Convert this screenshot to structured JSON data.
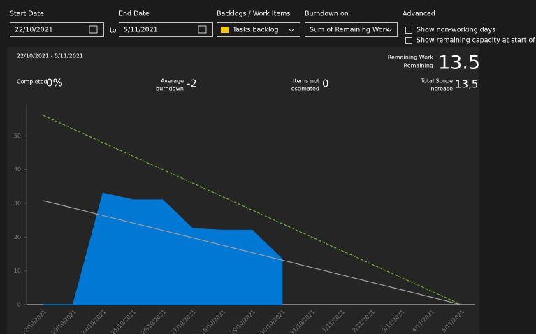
{
  "controls": {
    "start_label": "Start Date",
    "start_value": "22/10/2021",
    "to": "to",
    "end_label": "End Date",
    "end_value": "5/11/2021",
    "backlog_label": "Backlogs / Work Items",
    "backlog_value": "Tasks backlog",
    "burndown_label": "Burndown on",
    "burndown_value": "Sum of Remaining Work",
    "advanced_label": "Advanced",
    "options": [
      "Show non-working days",
      "Show remaining capacity at start of day"
    ]
  },
  "stats": {
    "range": "22/10/2021 - 5/11/2021",
    "remaining_label": [
      "Remaining Work",
      "Remaining"
    ],
    "remaining_value": "13.5",
    "completed_label": "Completed",
    "completed_value": "0%",
    "average_label": [
      "Average",
      "burndown"
    ],
    "average_value": "-2",
    "not_estimated_label": [
      "Items not",
      "estimated"
    ],
    "not_estimated_value": "0",
    "scope_label": [
      "Total Scope",
      "Increase"
    ],
    "scope_value": "13,5"
  },
  "chart_data": {
    "type": "area",
    "categories": [
      "22/10/2021",
      "23/10/2021",
      "24/10/2021",
      "25/10/2021",
      "26/10/2021",
      "27/10/2021",
      "28/10/2021",
      "29/10/2021",
      "30/10/2021",
      "31/10/2021",
      "1/11/2021",
      "2/11/2021",
      "3/11/2021",
      "4/11/2021",
      "5/11/2021"
    ],
    "ylim": [
      0,
      60
    ],
    "yticks": [
      0,
      10,
      20,
      30,
      40,
      50
    ],
    "series": [
      {
        "name": "Remaining",
        "type": "area",
        "color": "#0078d4",
        "values": [
          0,
          0,
          33,
          31,
          31,
          22.5,
          22,
          22,
          13.5,
          null,
          null,
          null,
          null,
          null,
          null
        ]
      },
      {
        "name": "Trend",
        "type": "line",
        "color": "#a0a0a0",
        "values": [
          30.8,
          28.6,
          26.4,
          24.2,
          22,
          19.8,
          17.6,
          15.4,
          13.2,
          11,
          8.8,
          6.6,
          4.4,
          2.2,
          0
        ]
      },
      {
        "name": "Ideal",
        "type": "line",
        "color": "#6fb52c",
        "dashed": true,
        "values": [
          56,
          52,
          48,
          44,
          40,
          36,
          32,
          28,
          24,
          20,
          16,
          12,
          8,
          4,
          0
        ]
      }
    ]
  }
}
